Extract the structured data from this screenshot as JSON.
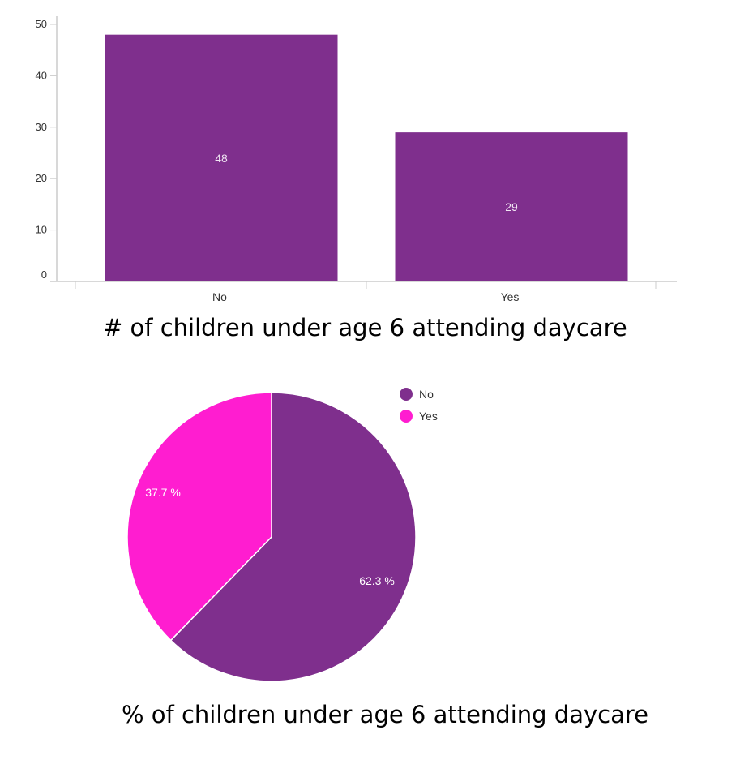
{
  "chart_data": [
    {
      "type": "bar",
      "title": "# of children under age 6 attending daycare",
      "categories": [
        "No",
        "Yes"
      ],
      "values": [
        48,
        29
      ],
      "data_labels": [
        "48",
        "29"
      ],
      "ylim": [
        0,
        50
      ],
      "yticks": [
        0,
        10,
        20,
        30,
        40,
        50
      ],
      "xlabel": "",
      "ylabel": "",
      "grid": false,
      "bar_color": "#7f2f8d"
    },
    {
      "type": "pie",
      "title": "% of children under age 6 attending daycare",
      "categories": [
        "No",
        "Yes"
      ],
      "values": [
        62.3,
        37.7
      ],
      "data_labels": [
        "62.3 %",
        "37.7 %"
      ],
      "colors": [
        "#7f2f8d",
        "#ff1dd0"
      ],
      "legend": {
        "placement": "top-right",
        "entries": [
          "No",
          "Yes"
        ]
      }
    }
  ]
}
